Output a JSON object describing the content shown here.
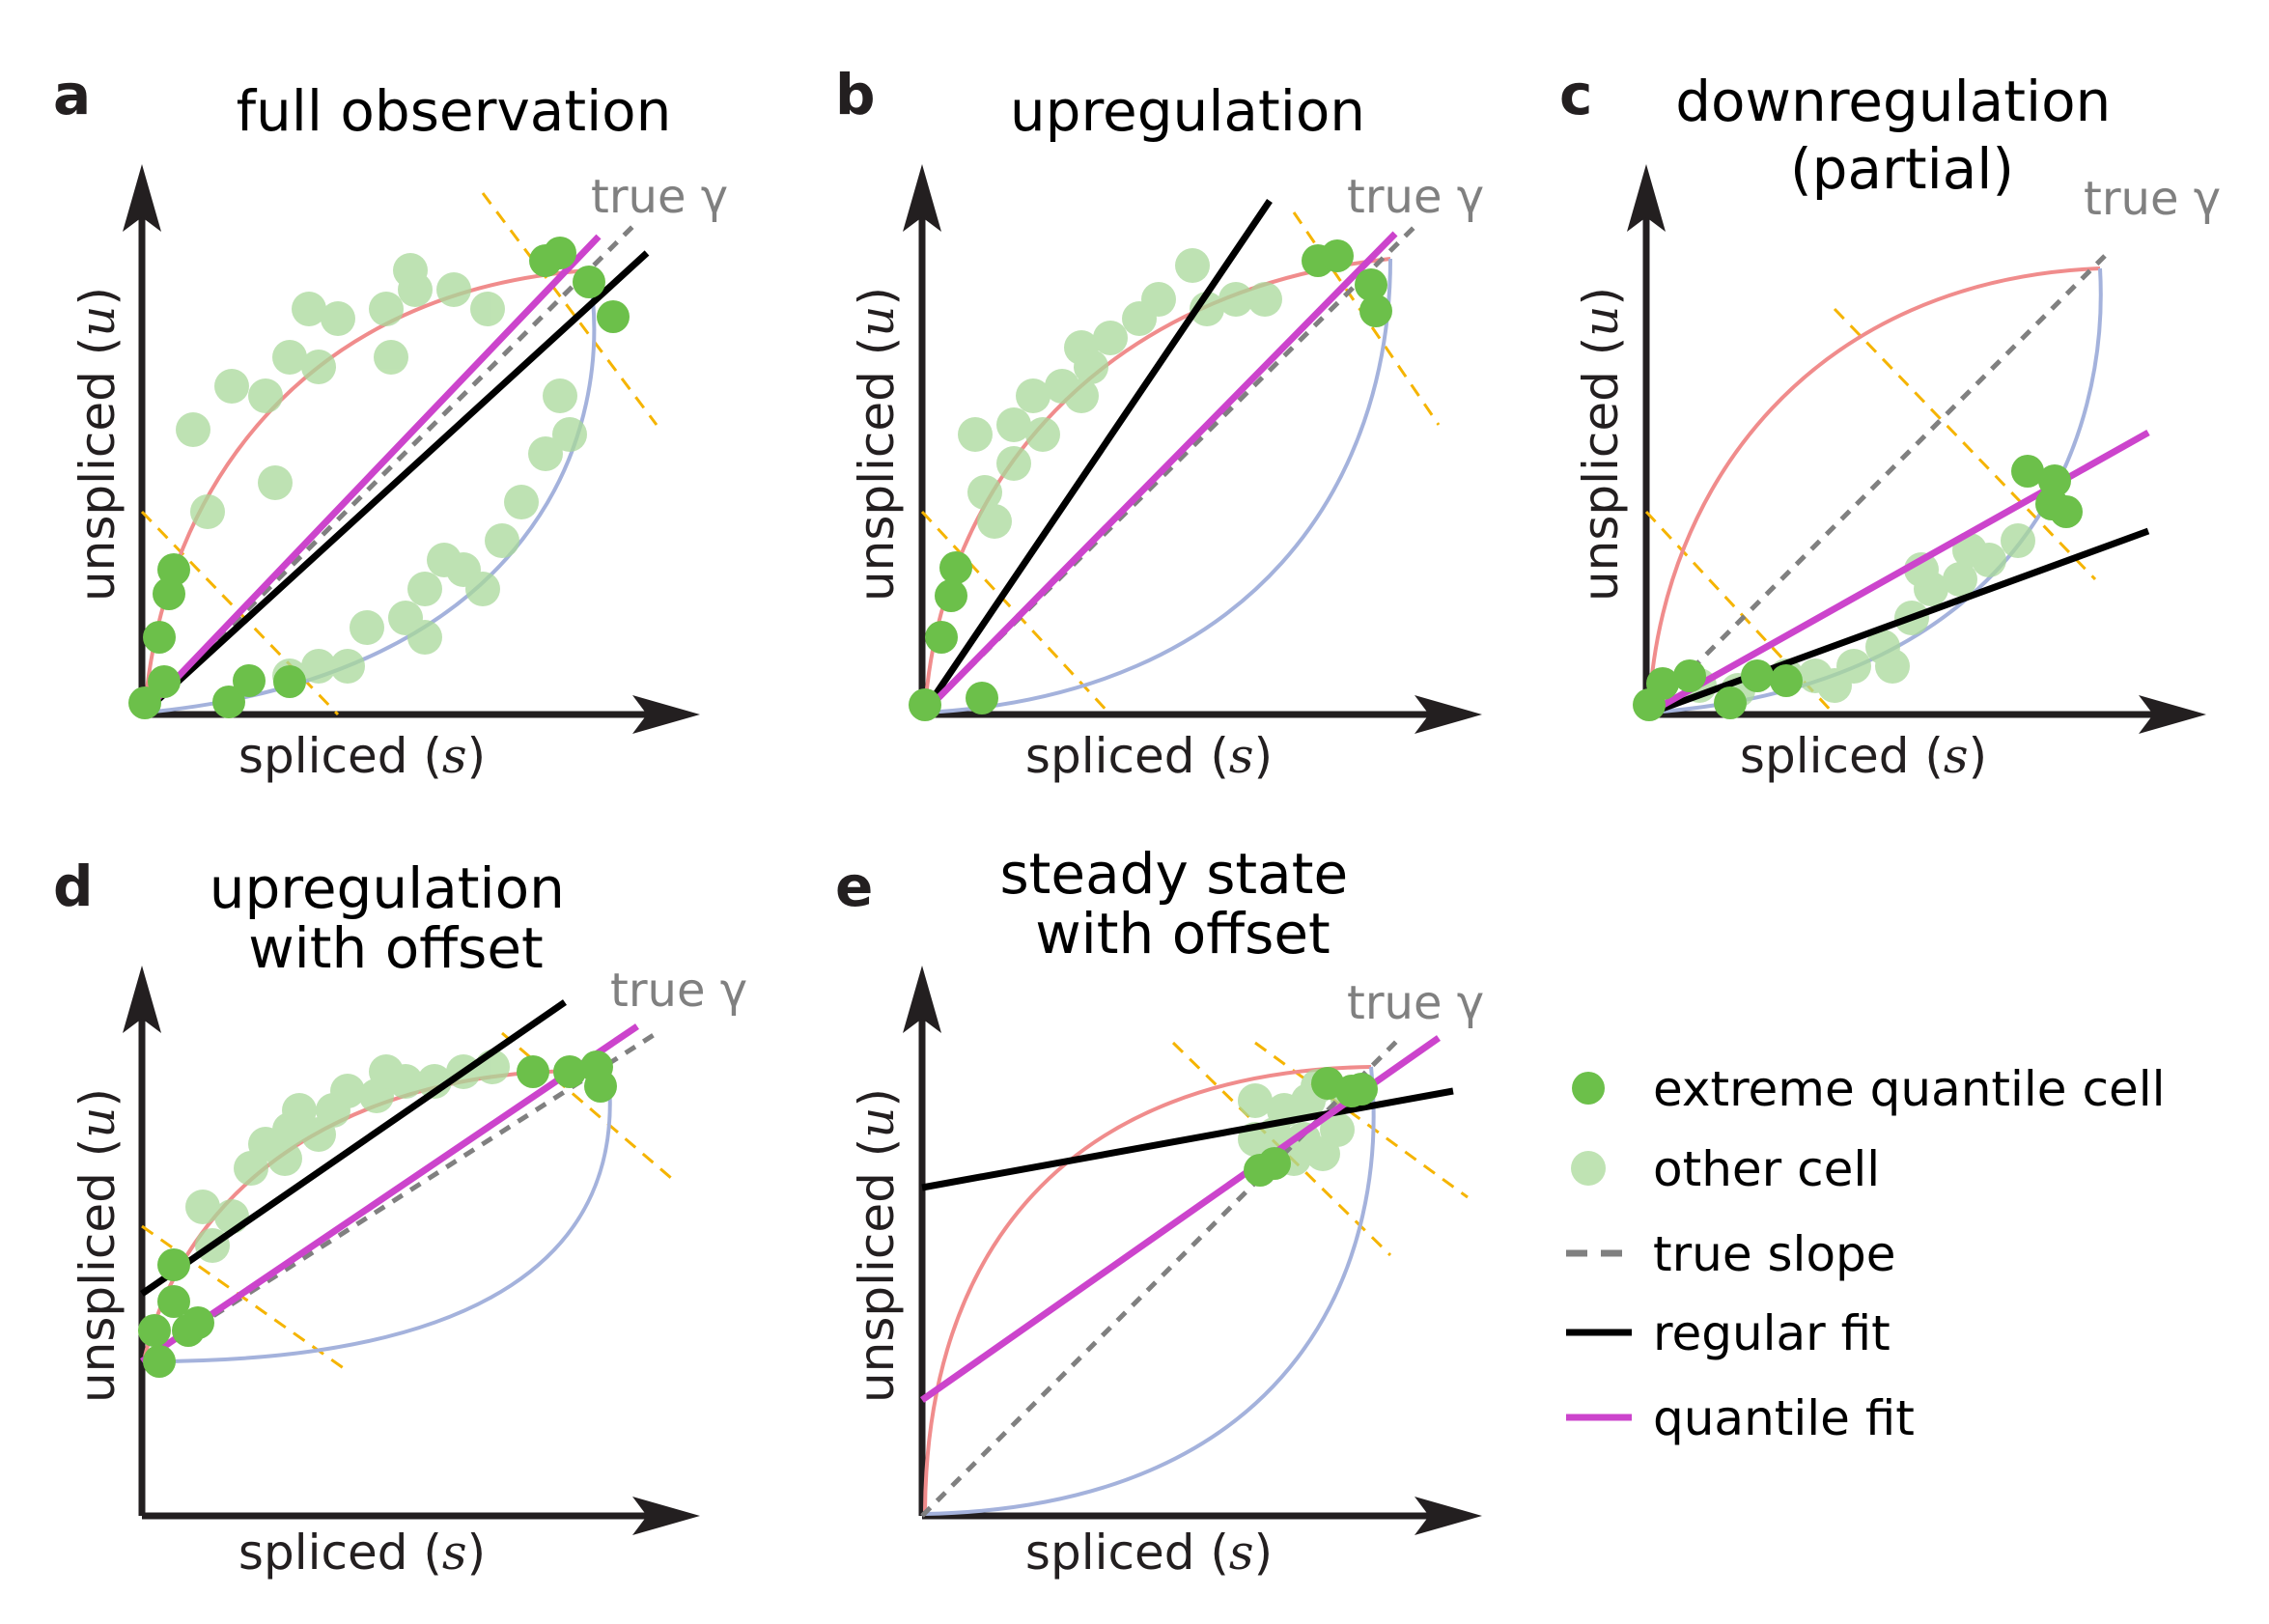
{
  "colors": {
    "axis": "#231f20",
    "up_trajectory": "#f08c8c",
    "down_trajectory": "#a4b2dc",
    "extreme_cell": "#6cc04a",
    "other_cell": "#a9d99a",
    "true_slope": "#808080",
    "regular_fit": "#000000",
    "quantile_fit": "#cc44cc",
    "quantile_guides": "#f5b400"
  },
  "panels": [
    {
      "letter": "a",
      "title_lines": [
        "full observation"
      ],
      "true_label": "true γ",
      "xlabel": "spliced",
      "xsym": "s",
      "ylabel": "unspliced",
      "ysym": "u"
    },
    {
      "letter": "b",
      "title_lines": [
        "upregulation"
      ],
      "true_label": "true γ",
      "xlabel": "spliced",
      "xsym": "s",
      "ylabel": "unspliced",
      "ysym": "u"
    },
    {
      "letter": "c",
      "title_lines": [
        "downregulation",
        "(partial)"
      ],
      "true_label": "true γ",
      "xlabel": "spliced",
      "xsym": "s",
      "ylabel": "unspliced",
      "ysym": "u"
    },
    {
      "letter": "d",
      "title_lines": [
        "upregulation",
        "with offset"
      ],
      "true_label": "true γ",
      "xlabel": "spliced",
      "xsym": "s",
      "ylabel": "unspliced",
      "ysym": "u"
    },
    {
      "letter": "e",
      "title_lines": [
        "steady state",
        "with offset"
      ],
      "true_label": "true γ",
      "xlabel": "spliced",
      "xsym": "s",
      "ylabel": "unspliced",
      "ysym": "u"
    }
  ],
  "legend": {
    "items": [
      {
        "label": "extreme quantile cell",
        "icon": "filled-green-dot"
      },
      {
        "label": "other cell",
        "icon": "faded-green-dot"
      },
      {
        "label": "true slope",
        "icon": "gray-dashed-line"
      },
      {
        "label": "regular fit",
        "icon": "black-line"
      },
      {
        "label": "quantile fit",
        "icon": "magenta-line"
      }
    ]
  }
}
